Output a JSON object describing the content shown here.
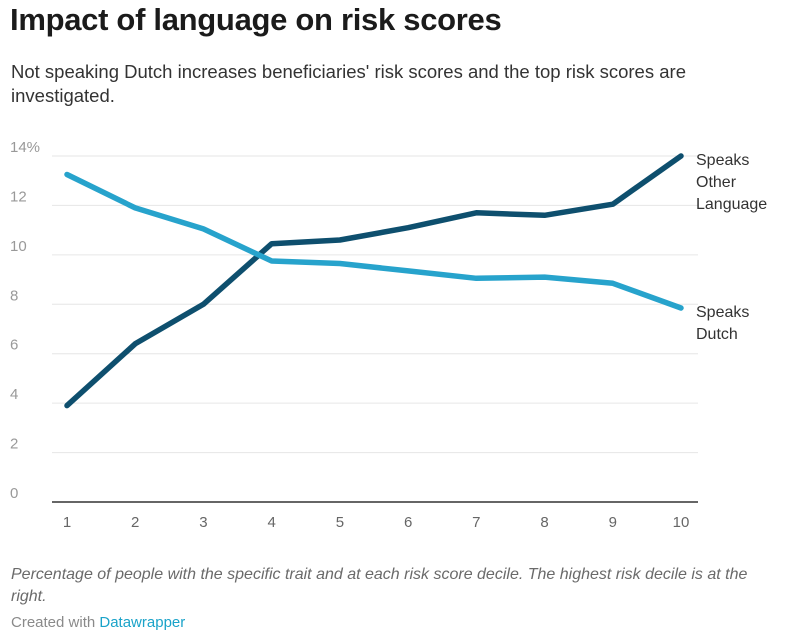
{
  "header": {
    "title": "Impact of language on risk scores",
    "subtitle": "Not speaking Dutch increases beneficiaries' risk scores and the top risk scores are investigated."
  },
  "footer": {
    "notes": "Percentage of people with the specific trait and at each risk score decile. The highest risk decile is at the right.",
    "credit_prefix": "Created with ",
    "credit_link": "Datawrapper"
  },
  "colors": {
    "other_language": "#0e4f6e",
    "dutch": "#27a3cc",
    "grid": "#e6e6e6",
    "axis": "#333333",
    "link": "#1aa3c9"
  },
  "chart_data": {
    "type": "line",
    "x": [
      1,
      2,
      3,
      4,
      5,
      6,
      7,
      8,
      9,
      10
    ],
    "y_ticks": [
      "0",
      "2",
      "4",
      "6",
      "8",
      "10",
      "12",
      "14%"
    ],
    "x_ticks": [
      "1",
      "2",
      "3",
      "4",
      "5",
      "6",
      "7",
      "8",
      "9",
      "10"
    ],
    "ylim": [
      0,
      14
    ],
    "grid": true,
    "series": [
      {
        "key": "other_language",
        "label_lines": [
          "Speaks",
          "Other",
          "Language"
        ],
        "values": [
          3.9,
          6.4,
          8.0,
          10.45,
          10.6,
          11.1,
          11.7,
          11.6,
          12.05,
          14.0
        ]
      },
      {
        "key": "dutch",
        "label_lines": [
          "Speaks",
          "Dutch"
        ],
        "values": [
          13.25,
          11.9,
          11.05,
          9.75,
          9.65,
          9.35,
          9.05,
          9.1,
          8.85,
          7.85
        ]
      }
    ]
  }
}
